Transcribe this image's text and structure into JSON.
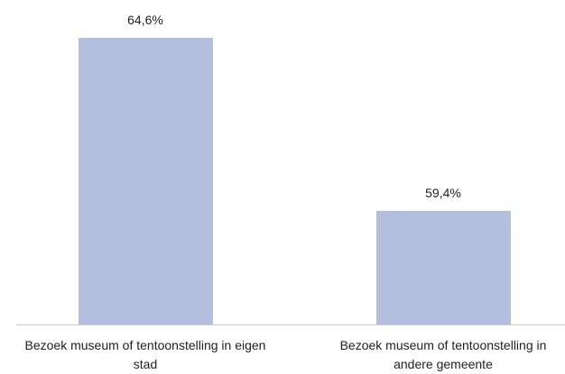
{
  "chart_data": {
    "type": "bar",
    "categories": [
      "Bezoek museum of tentoonstelling in eigen stad",
      "Bezoek museum of tentoonstelling in andere gemeente"
    ],
    "values": [
      64.6,
      59.4
    ],
    "value_labels": [
      "64,6%",
      "59,4%"
    ],
    "color": "#b4bfe0",
    "ylim": [
      56,
      65.5
    ]
  }
}
